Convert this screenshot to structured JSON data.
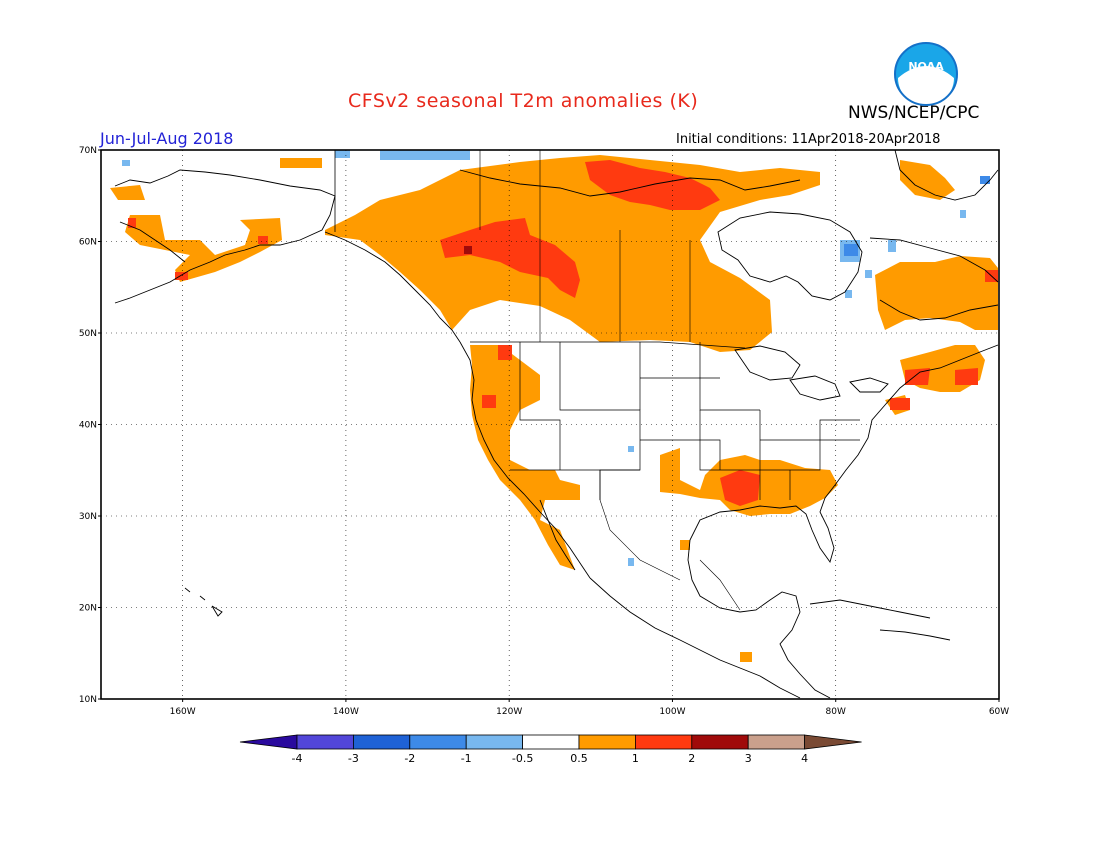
{
  "title": "CFSv2 seasonal T2m anomalies (K)",
  "organization": "NWS/NCEP/CPC",
  "logo_text": "NOAA",
  "period": "Jun-Jul-Aug 2018",
  "initial_conditions": "Initial conditions: 11Apr2018-20Apr2018",
  "lat_labels": [
    "70N",
    "60N",
    "50N",
    "40N",
    "30N",
    "20N",
    "10N"
  ],
  "lon_labels": [
    "160W",
    "140W",
    "120W",
    "100W",
    "80W",
    "60W"
  ],
  "colorbar": {
    "labels": [
      "-4",
      "-3",
      "-2",
      "-1",
      "-0.5",
      "0.5",
      "1",
      "2",
      "3",
      "4"
    ],
    "colors": [
      "#2a0a9e",
      "#5246d9",
      "#1f62d6",
      "#3d8ae8",
      "#78b8ef",
      "#ffffff",
      "#ff9b00",
      "#ff3a10",
      "#a00a0a",
      "#caa08c",
      "#7a4a34"
    ]
  },
  "colors": {
    "anom_0_5_to_1": "#ff9b00",
    "anom_1_to_2": "#ff3a10",
    "anom_2_to_3": "#a00a0a",
    "anom_neg_0_5_to_1": "#78b8ef",
    "anom_neg_1_to_2": "#3d8ae8",
    "anom_neg_2_to_3": "#1f62d6",
    "title_red": "#e8291c",
    "period_blue": "#2323d6"
  }
}
